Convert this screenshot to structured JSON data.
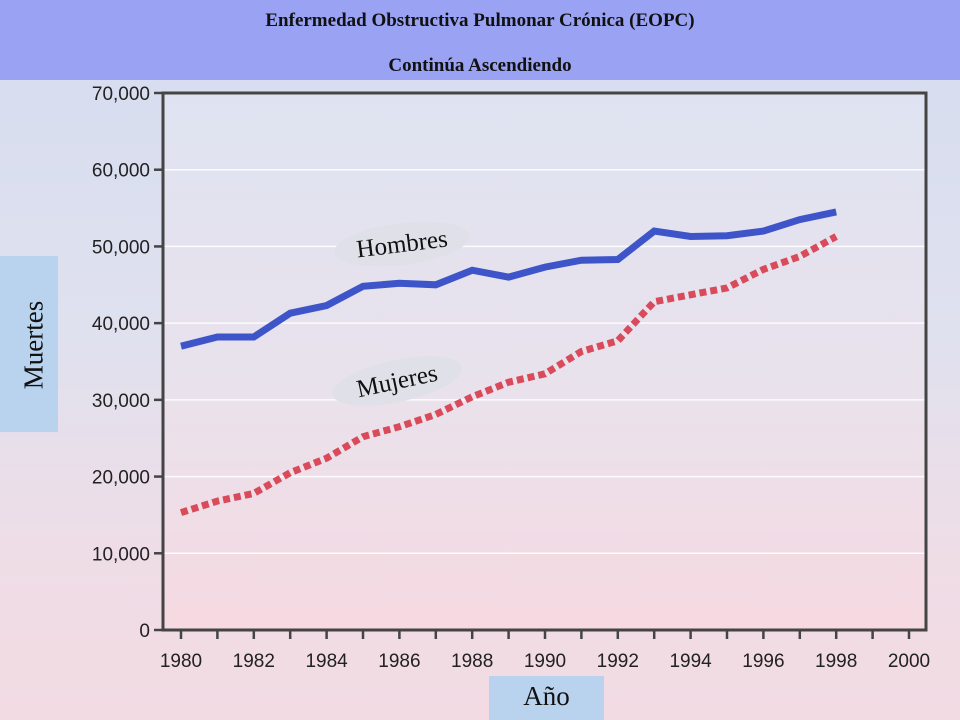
{
  "header": {
    "title": "Enfermedad  Obstructiva Pulmonar Crónica (EOPC)",
    "subtitle": "Continúa Ascendiendo"
  },
  "chart_data": {
    "type": "line",
    "title": "Enfermedad  Obstructiva Pulmonar Crónica (EOPC)",
    "subtitle": "Continúa Ascendiendo",
    "xlabel": "Año",
    "ylabel": "Muertes",
    "xlim": [
      1980,
      2000
    ],
    "ylim": [
      0,
      70000
    ],
    "x_ticks": [
      "1980",
      "1982",
      "1984",
      "1986",
      "1988",
      "1990",
      "1992",
      "1994",
      "1996",
      "1998",
      "2000"
    ],
    "y_ticks": [
      "0",
      "10,000",
      "20,000",
      "30,000",
      "40,000",
      "50,000",
      "60,000",
      "70,000"
    ],
    "grid": true,
    "legend": "none (inline labels)",
    "x": [
      1980,
      1981,
      1982,
      1983,
      1984,
      1985,
      1986,
      1987,
      1988,
      1989,
      1990,
      1991,
      1992,
      1993,
      1994,
      1995,
      1996,
      1997,
      1998
    ],
    "series": [
      {
        "name": "Hombres",
        "color": "#3e55c9",
        "style": "solid",
        "values": [
          37000,
          38200,
          38200,
          41300,
          42300,
          44800,
          45200,
          45000,
          46900,
          46000,
          47300,
          48200,
          48300,
          52000,
          51300,
          51400,
          52000,
          53500,
          54500
        ]
      },
      {
        "name": "Mujeres",
        "color": "#d94a5a",
        "style": "dotted",
        "values": [
          15300,
          16800,
          17800,
          20500,
          22400,
          25200,
          26500,
          28100,
          30400,
          32300,
          33400,
          36300,
          37700,
          42800,
          43700,
          44600,
          47000,
          48700,
          51300
        ]
      }
    ]
  }
}
